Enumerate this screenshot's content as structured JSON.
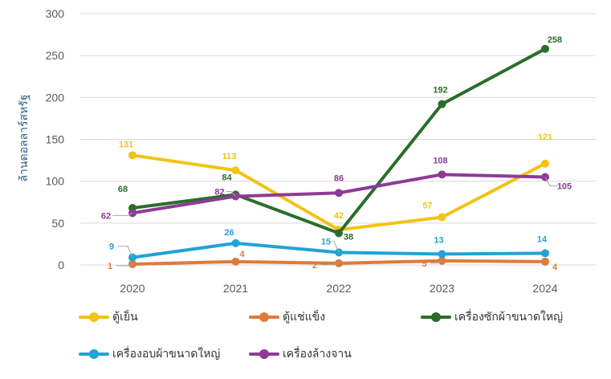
{
  "chart_data": {
    "type": "line",
    "ylabel": "ล้านดอลลาร์สหรัฐ",
    "ylim": [
      0,
      300
    ],
    "yticks": [
      "0",
      "50",
      "100",
      "150",
      "200",
      "250",
      "300"
    ],
    "categories": [
      "2020",
      "2021",
      "2022",
      "2023",
      "2024"
    ],
    "grid": true,
    "legend_position": "bottom",
    "series": [
      {
        "name": "ตู้เย็น",
        "color": "#f2c314",
        "values": [
          131,
          113,
          42,
          57,
          121
        ]
      },
      {
        "name": "ตู้แช่แข็ง",
        "color": "#e07a3a",
        "values": [
          1,
          4,
          2,
          5,
          4
        ]
      },
      {
        "name": "เครื่องซักผ้าขนาดใหญ่",
        "color": "#2a6e2a",
        "values": [
          68,
          84,
          38,
          192,
          258
        ]
      },
      {
        "name": "เครื่องอบผ้าขนาดใหญ่",
        "color": "#21a3d6",
        "values": [
          9,
          26,
          15,
          13,
          14
        ]
      },
      {
        "name": "เครื่องล้างจาน",
        "color": "#8e3a96",
        "values": [
          62,
          82,
          86,
          108,
          105
        ]
      }
    ]
  }
}
